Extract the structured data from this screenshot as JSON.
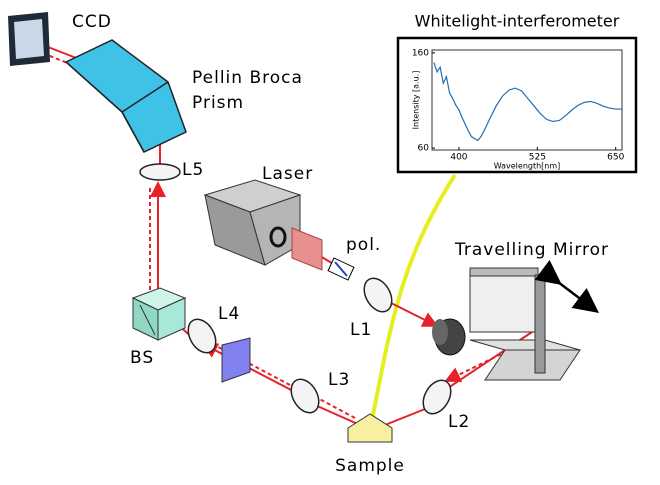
{
  "labels": {
    "ccd": "CCD",
    "prism_1": "Pellin Broca",
    "prism_2": "Prism",
    "laser": "Laser",
    "pol": "pol.",
    "l1": "L1",
    "l2": "L2",
    "l3": "L3",
    "l4": "L4",
    "l5": "L5",
    "bs": "BS",
    "mirror": "Travelling Mirror",
    "sample": "Sample"
  },
  "inset_chart": {
    "type": "line",
    "title": "Whitelight-interferometer",
    "x_label": "Wavelength[nm]",
    "y_label": "Intensity [a.u.]",
    "x": [
      360,
      365,
      370,
      375,
      380,
      385,
      390,
      395,
      400,
      405,
      410,
      415,
      420,
      425,
      430,
      435,
      440,
      450,
      460,
      470,
      480,
      490,
      500,
      510,
      520,
      530,
      540,
      550,
      560,
      570,
      580,
      590,
      600,
      610,
      620,
      630,
      640,
      650,
      660
    ],
    "series": [
      {
        "color": "#1f6fb4",
        "values": [
          150,
          140,
          145,
          128,
          135,
          118,
          112,
          105,
          100,
          92,
          85,
          78,
          72,
          70,
          68,
          72,
          78,
          92,
          105,
          115,
          121,
          123,
          120,
          112,
          104,
          96,
          90,
          88,
          89,
          94,
          100,
          105,
          108,
          109,
          107,
          104,
          102,
          101,
          101
        ]
      }
    ],
    "xlim": [
      357,
      660
    ],
    "ylim": [
      58,
      163
    ],
    "xticks": [
      400,
      525,
      650
    ],
    "yticks": [
      60,
      160
    ]
  }
}
